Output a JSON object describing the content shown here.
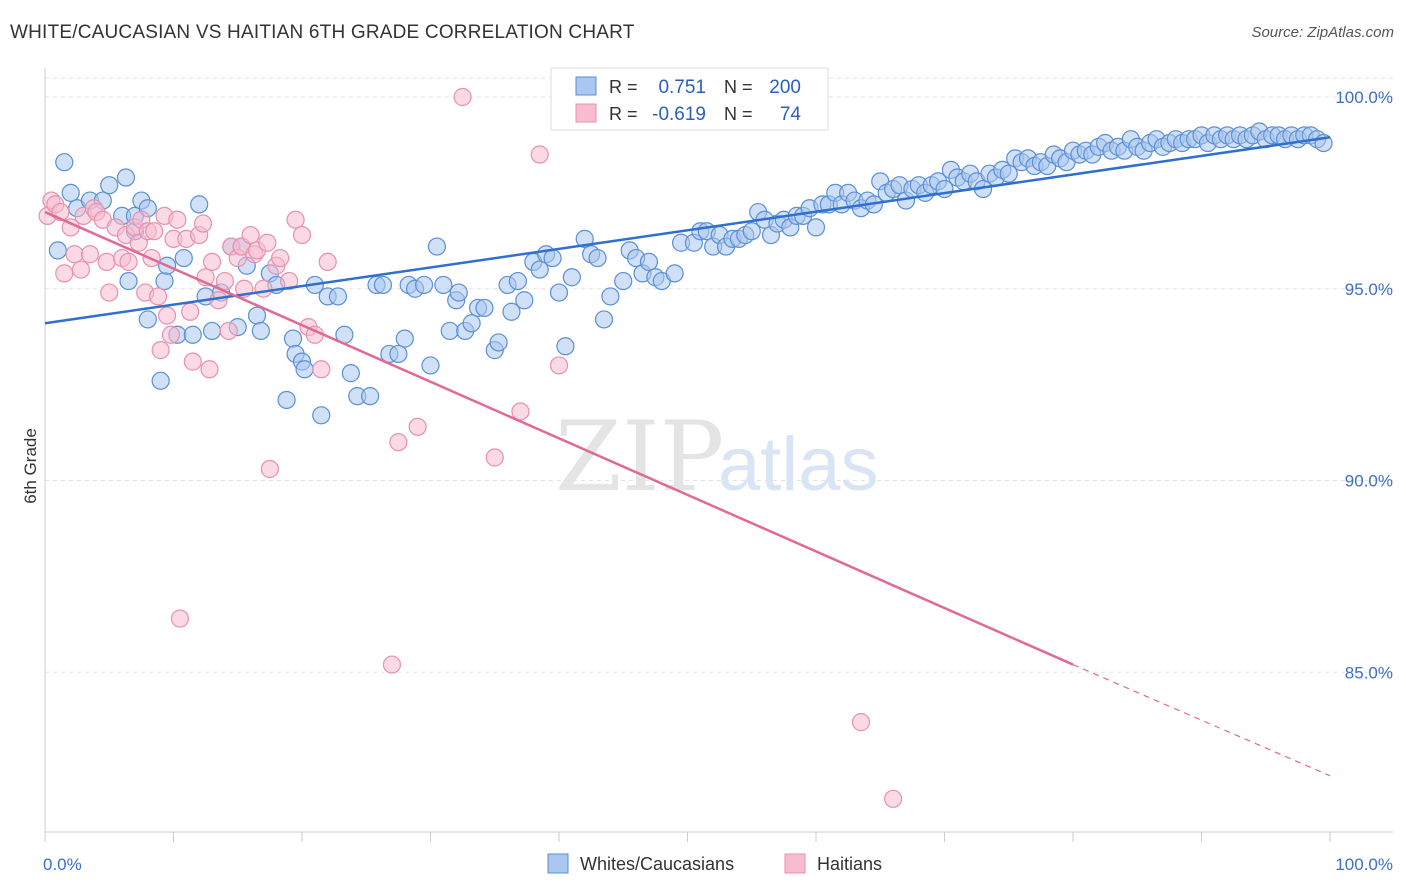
{
  "title": "WHITE/CAUCASIAN VS HAITIAN 6TH GRADE CORRELATION CHART",
  "source": "Source: ZipAtlas.com",
  "watermark": {
    "zip": "ZIP",
    "atlas": "atlas"
  },
  "colors": {
    "white_fill": "#aac7f0",
    "white_stroke": "#5b8fd6",
    "white_line": "#2f6fce",
    "haitian_fill": "#f7bcd0",
    "haitian_stroke": "#e890ad",
    "haitian_line": "#e06a95",
    "tick_text": "#3d6ec9",
    "grid": "#e3e3e3"
  },
  "legend_top": {
    "rows": [
      {
        "r_label": "R =",
        "r_value": "0.751",
        "n_label": "N =",
        "n_value": "200"
      },
      {
        "r_label": "R =",
        "r_value": "-0.619",
        "n_label": "N =",
        "n_value": "74"
      }
    ]
  },
  "legend_bottom": [
    "Whites/Caucasians",
    "Haitians"
  ],
  "chart_data": {
    "type": "scatter",
    "title": "WHITE/CAUCASIAN VS HAITIAN 6TH GRADE CORRELATION CHART",
    "xlabel": "",
    "ylabel": "6th Grade",
    "xlim": [
      0,
      100
    ],
    "ylim": [
      80.0,
      101.0
    ],
    "x_tick_labels": [
      "0.0%",
      "100.0%"
    ],
    "y_ticks": [
      85.0,
      90.0,
      95.0,
      100.0
    ],
    "y_tick_labels": [
      "85.0%",
      "90.0%",
      "95.0%",
      "100.0%"
    ],
    "grid": true,
    "legend_position": "top-center",
    "series": [
      {
        "name": "Whites/Caucasians",
        "r": 0.751,
        "n": 200,
        "trend": {
          "x": [
            0,
            100
          ],
          "y": [
            94.1,
            98.95
          ]
        },
        "points": [
          [
            1.5,
            98.3
          ],
          [
            2,
            97.5
          ],
          [
            1,
            96
          ],
          [
            2.5,
            97.1
          ],
          [
            3.5,
            97.3
          ],
          [
            4.5,
            97.3
          ],
          [
            5,
            97.7
          ],
          [
            6,
            96.9
          ],
          [
            6.3,
            97.9
          ],
          [
            7,
            96.5
          ],
          [
            6.5,
            95.2
          ],
          [
            7,
            96.9
          ],
          [
            7.5,
            97.3
          ],
          [
            8,
            97.1
          ],
          [
            8,
            94.2
          ],
          [
            9,
            92.6
          ],
          [
            9.3,
            95.2
          ],
          [
            9.5,
            95.6
          ],
          [
            10.3,
            93.8
          ],
          [
            10.8,
            95.8
          ],
          [
            11.5,
            93.8
          ],
          [
            12,
            97.2
          ],
          [
            12.5,
            94.8
          ],
          [
            13,
            93.9
          ],
          [
            13.7,
            94.9
          ],
          [
            14.5,
            96.1
          ],
          [
            15,
            94.0
          ],
          [
            15.3,
            96.1
          ],
          [
            15.7,
            95.6
          ],
          [
            16.5,
            94.3
          ],
          [
            16.8,
            93.9
          ],
          [
            17.5,
            95.4
          ],
          [
            18,
            95.1
          ],
          [
            18.8,
            92.1
          ],
          [
            19.3,
            93.7
          ],
          [
            19.5,
            93.3
          ],
          [
            20,
            93.1
          ],
          [
            20.2,
            92.9
          ],
          [
            21,
            95.1
          ],
          [
            21.5,
            91.7
          ],
          [
            22,
            94.8
          ],
          [
            22.8,
            94.8
          ],
          [
            23.3,
            93.8
          ],
          [
            23.8,
            92.8
          ],
          [
            24.3,
            92.2
          ],
          [
            25.3,
            92.2
          ],
          [
            25.8,
            95.1
          ],
          [
            26.3,
            95.1
          ],
          [
            26.8,
            93.3
          ],
          [
            27.5,
            93.3
          ],
          [
            28,
            93.7
          ],
          [
            28.3,
            95.1
          ],
          [
            28.8,
            95.0
          ],
          [
            29.5,
            95.1
          ],
          [
            30,
            93.0
          ],
          [
            30.5,
            96.1
          ],
          [
            31,
            95.1
          ],
          [
            31.5,
            93.9
          ],
          [
            32,
            94.7
          ],
          [
            32.2,
            94.9
          ],
          [
            32.7,
            93.9
          ],
          [
            33.2,
            94.1
          ],
          [
            33.7,
            94.5
          ],
          [
            34.2,
            94.5
          ],
          [
            35,
            93.4
          ],
          [
            35.3,
            93.6
          ],
          [
            36,
            95.1
          ],
          [
            36.3,
            94.4
          ],
          [
            36.8,
            95.2
          ],
          [
            37.3,
            94.7
          ],
          [
            38,
            95.7
          ],
          [
            38.5,
            95.5
          ],
          [
            39,
            95.9
          ],
          [
            39.5,
            95.8
          ],
          [
            40,
            94.9
          ],
          [
            40.5,
            93.5
          ],
          [
            41,
            95.3
          ],
          [
            42,
            96.3
          ],
          [
            42.5,
            95.9
          ],
          [
            43,
            95.8
          ],
          [
            43.5,
            94.2
          ],
          [
            44,
            94.8
          ],
          [
            45,
            95.2
          ],
          [
            45.5,
            96.0
          ],
          [
            46,
            95.8
          ],
          [
            46.5,
            95.4
          ],
          [
            47,
            95.7
          ],
          [
            47.5,
            95.3
          ],
          [
            48,
            95.2
          ],
          [
            49,
            95.4
          ],
          [
            49.5,
            96.2
          ],
          [
            50.5,
            96.2
          ],
          [
            51,
            96.5
          ],
          [
            51.5,
            96.5
          ],
          [
            52,
            96.1
          ],
          [
            52.5,
            96.4
          ],
          [
            53,
            96.1
          ],
          [
            53.5,
            96.3
          ],
          [
            54,
            96.3
          ],
          [
            54.5,
            96.4
          ],
          [
            55,
            96.5
          ],
          [
            55.5,
            97.0
          ],
          [
            56,
            96.8
          ],
          [
            56.5,
            96.4
          ],
          [
            57,
            96.7
          ],
          [
            57.5,
            96.8
          ],
          [
            58,
            96.6
          ],
          [
            58.5,
            96.9
          ],
          [
            59,
            96.9
          ],
          [
            59.5,
            97.1
          ],
          [
            60,
            96.6
          ],
          [
            60.5,
            97.2
          ],
          [
            61,
            97.2
          ],
          [
            61.5,
            97.5
          ],
          [
            62,
            97.2
          ],
          [
            62.5,
            97.5
          ],
          [
            63,
            97.3
          ],
          [
            63.5,
            97.1
          ],
          [
            64,
            97.3
          ],
          [
            64.5,
            97.2
          ],
          [
            65,
            97.8
          ],
          [
            65.5,
            97.5
          ],
          [
            66,
            97.6
          ],
          [
            66.5,
            97.7
          ],
          [
            67,
            97.3
          ],
          [
            67.5,
            97.6
          ],
          [
            68,
            97.7
          ],
          [
            68.5,
            97.5
          ],
          [
            69,
            97.7
          ],
          [
            69.5,
            97.8
          ],
          [
            70,
            97.6
          ],
          [
            70.5,
            98.1
          ],
          [
            71,
            97.9
          ],
          [
            71.5,
            97.8
          ],
          [
            72,
            98.0
          ],
          [
            72.5,
            97.8
          ],
          [
            73,
            97.6
          ],
          [
            73.5,
            98.0
          ],
          [
            74,
            97.9
          ],
          [
            74.5,
            98.1
          ],
          [
            75,
            98.0
          ],
          [
            75.5,
            98.4
          ],
          [
            76,
            98.3
          ],
          [
            76.5,
            98.4
          ],
          [
            77,
            98.2
          ],
          [
            77.5,
            98.3
          ],
          [
            78,
            98.2
          ],
          [
            78.5,
            98.5
          ],
          [
            79,
            98.4
          ],
          [
            79.5,
            98.3
          ],
          [
            80,
            98.6
          ],
          [
            80.5,
            98.5
          ],
          [
            81,
            98.6
          ],
          [
            81.5,
            98.5
          ],
          [
            82,
            98.7
          ],
          [
            82.5,
            98.8
          ],
          [
            83,
            98.6
          ],
          [
            83.5,
            98.7
          ],
          [
            84,
            98.6
          ],
          [
            84.5,
            98.9
          ],
          [
            85,
            98.7
          ],
          [
            85.5,
            98.6
          ],
          [
            86,
            98.8
          ],
          [
            86.5,
            98.9
          ],
          [
            87,
            98.7
          ],
          [
            87.5,
            98.8
          ],
          [
            88,
            98.9
          ],
          [
            88.5,
            98.8
          ],
          [
            89,
            98.9
          ],
          [
            89.5,
            98.9
          ],
          [
            90,
            99.0
          ],
          [
            90.5,
            98.8
          ],
          [
            91,
            99.0
          ],
          [
            91.5,
            98.9
          ],
          [
            92,
            99.0
          ],
          [
            92.5,
            98.9
          ],
          [
            93,
            99.0
          ],
          [
            93.5,
            98.9
          ],
          [
            94,
            99.0
          ],
          [
            94.5,
            99.1
          ],
          [
            95,
            98.9
          ],
          [
            95.5,
            99.0
          ],
          [
            96,
            99.0
          ],
          [
            96.5,
            98.9
          ],
          [
            97,
            99.0
          ],
          [
            97.5,
            98.9
          ],
          [
            98,
            99.0
          ],
          [
            98.5,
            99.0
          ],
          [
            99,
            98.9
          ],
          [
            99.5,
            98.8
          ]
        ]
      },
      {
        "name": "Haitians",
        "r": -0.619,
        "n": 74,
        "trend": {
          "x": [
            0,
            80
          ],
          "y": [
            97.0,
            85.2
          ]
        },
        "trend_dashed": {
          "x": [
            80,
            100
          ],
          "y": [
            85.2,
            82.3
          ]
        },
        "points": [
          [
            0.2,
            96.9
          ],
          [
            0.5,
            97.3
          ],
          [
            0.8,
            97.2
          ],
          [
            1.2,
            97.0
          ],
          [
            1.5,
            95.4
          ],
          [
            2,
            96.6
          ],
          [
            2.3,
            95.9
          ],
          [
            2.8,
            95.5
          ],
          [
            3,
            96.9
          ],
          [
            3.5,
            95.9
          ],
          [
            3.8,
            97.1
          ],
          [
            4,
            97.0
          ],
          [
            4.5,
            96.8
          ],
          [
            4.8,
            95.7
          ],
          [
            5,
            94.9
          ],
          [
            5.5,
            96.6
          ],
          [
            6,
            95.8
          ],
          [
            6.3,
            96.4
          ],
          [
            6.5,
            95.7
          ],
          [
            7,
            96.6
          ],
          [
            7.3,
            96.2
          ],
          [
            7.5,
            96.8
          ],
          [
            7.8,
            94.9
          ],
          [
            8,
            96.5
          ],
          [
            8.3,
            95.8
          ],
          [
            8.5,
            96.5
          ],
          [
            8.8,
            94.8
          ],
          [
            9,
            93.4
          ],
          [
            9.3,
            96.9
          ],
          [
            9.5,
            94.3
          ],
          [
            9.8,
            93.8
          ],
          [
            10,
            96.3
          ],
          [
            10.3,
            96.8
          ],
          [
            10.5,
            86.4
          ],
          [
            11,
            96.3
          ],
          [
            11.3,
            94.4
          ],
          [
            11.5,
            93.1
          ],
          [
            12,
            96.4
          ],
          [
            12.3,
            96.7
          ],
          [
            12.5,
            95.3
          ],
          [
            12.8,
            92.9
          ],
          [
            13,
            95.7
          ],
          [
            13.5,
            94.7
          ],
          [
            14,
            95.2
          ],
          [
            14.3,
            93.9
          ],
          [
            14.5,
            96.1
          ],
          [
            15,
            95.8
          ],
          [
            15.3,
            96.1
          ],
          [
            15.5,
            95.0
          ],
          [
            16,
            96.4
          ],
          [
            16.3,
            95.9
          ],
          [
            16.5,
            96.0
          ],
          [
            17,
            95.0
          ],
          [
            17.3,
            96.2
          ],
          [
            17.5,
            90.3
          ],
          [
            18,
            95.6
          ],
          [
            18.3,
            95.8
          ],
          [
            19,
            95.2
          ],
          [
            19.5,
            96.8
          ],
          [
            20,
            96.4
          ],
          [
            20.5,
            94.0
          ],
          [
            21,
            93.8
          ],
          [
            21.5,
            92.9
          ],
          [
            22,
            95.7
          ],
          [
            27,
            85.2
          ],
          [
            27.5,
            91.0
          ],
          [
            29,
            91.4
          ],
          [
            32.5,
            100.0
          ],
          [
            35,
            90.6
          ],
          [
            37,
            91.8
          ],
          [
            38.5,
            98.5
          ],
          [
            40,
            93.0
          ],
          [
            63.5,
            83.7
          ],
          [
            66,
            81.7
          ]
        ]
      }
    ]
  }
}
